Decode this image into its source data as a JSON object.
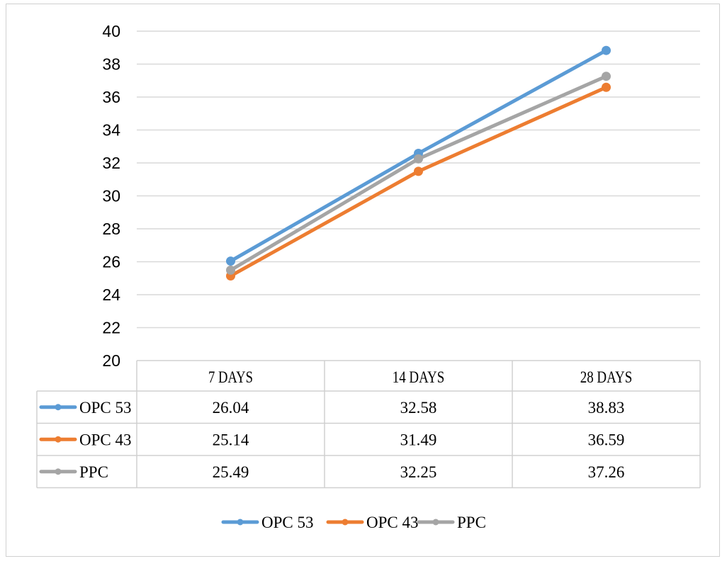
{
  "chart_data": {
    "type": "line",
    "title": "",
    "xlabel": "",
    "ylabel": "",
    "ylim": [
      20,
      40
    ],
    "yticks": [
      20,
      22,
      24,
      26,
      28,
      30,
      32,
      34,
      36,
      38,
      40
    ],
    "categories": [
      "7 DAYS",
      "14 DAYS",
      "28 DAYS"
    ],
    "grid": true,
    "legend": "bottom",
    "data_table": true,
    "series": [
      {
        "name": "OPC 53",
        "values": [
          26.04,
          32.58,
          38.83
        ],
        "value_labels": [
          "26.04",
          "32.58",
          "38.83"
        ],
        "color": "#5b9bd5"
      },
      {
        "name": "OPC 43",
        "values": [
          25.14,
          31.49,
          36.59
        ],
        "value_labels": [
          "25.14",
          "31.49",
          "36.59"
        ],
        "color": "#ed7d31"
      },
      {
        "name": "PPC",
        "values": [
          25.49,
          32.25,
          37.26
        ],
        "value_labels": [
          "25.49",
          "32.25",
          "37.26"
        ],
        "color": "#a5a5a5"
      }
    ]
  }
}
